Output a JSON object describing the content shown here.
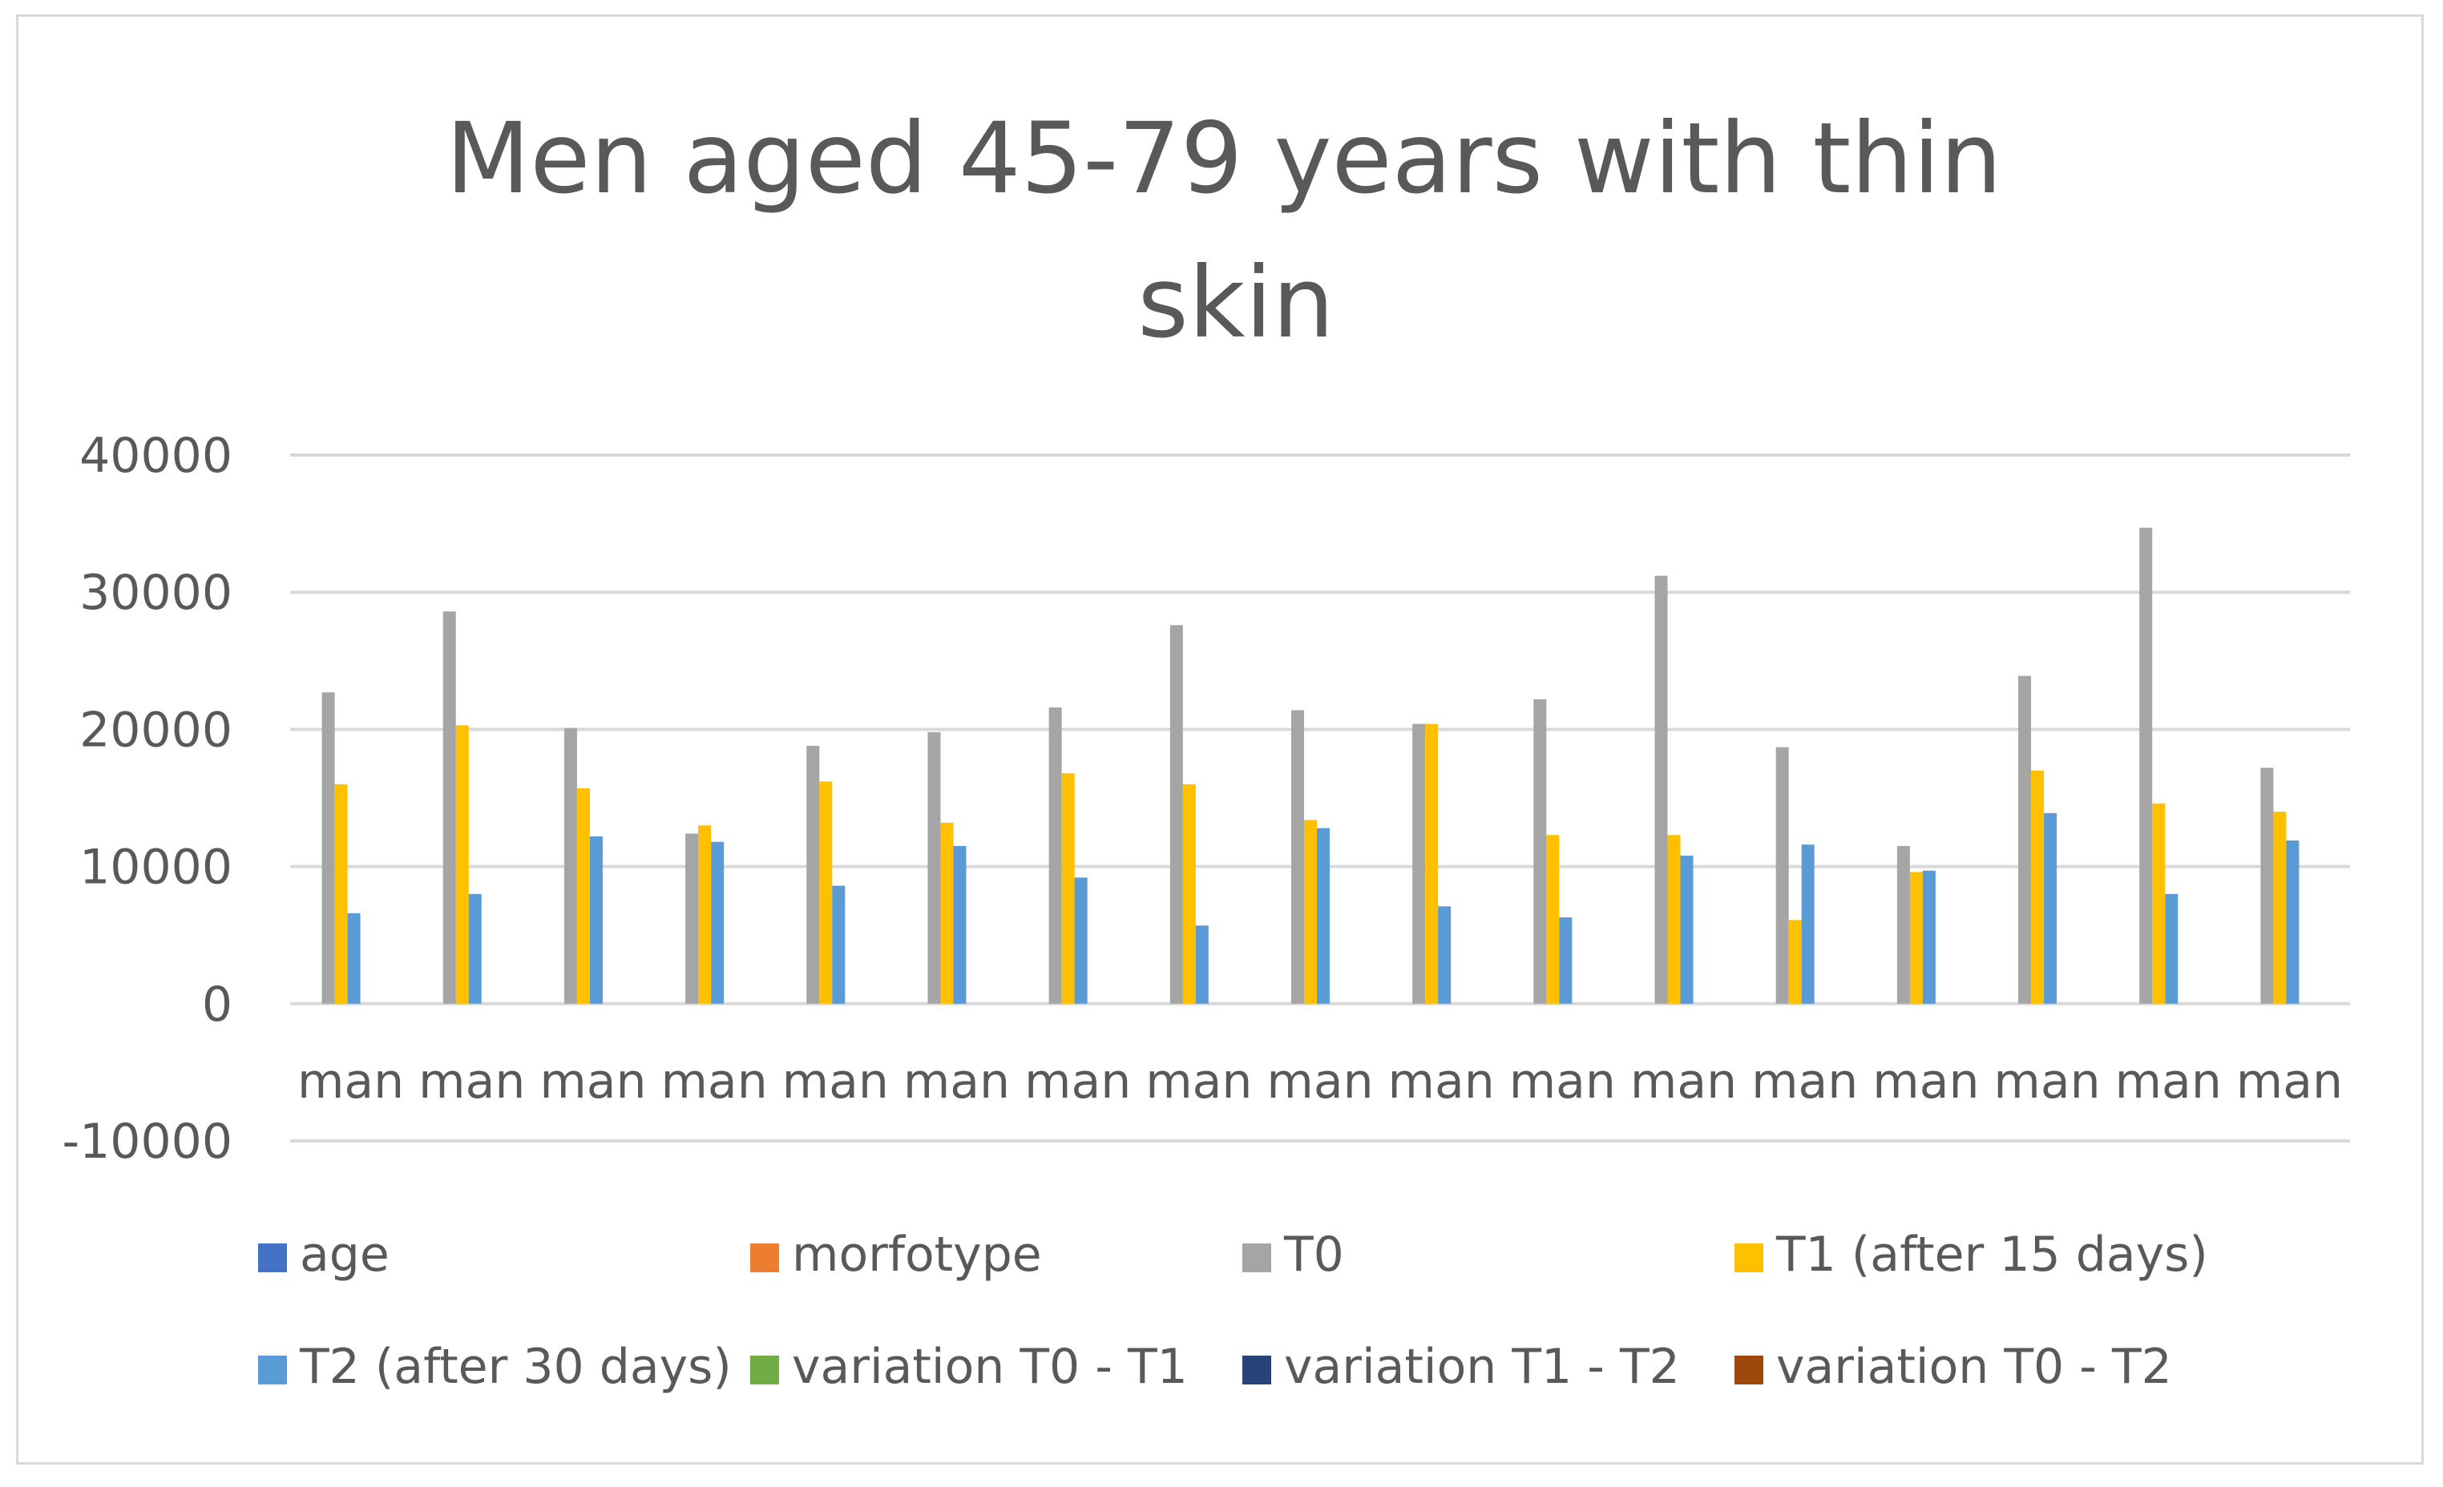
{
  "chart_data": {
    "type": "bar",
    "title": "Men aged 45-79 years with thin skin",
    "title_lines": [
      "Men aged 45-79 years with thin",
      "skin"
    ],
    "xlabel": "",
    "ylabel": "",
    "ylim": [
      -10000,
      40000
    ],
    "yticks": [
      40000,
      30000,
      20000,
      10000,
      0,
      -10000
    ],
    "ytick_labels": [
      "40000",
      "30000",
      "20000",
      "10000",
      "0",
      "-10000"
    ],
    "grid": true,
    "legend_position": "bottom",
    "categories": [
      "man",
      "man",
      "man",
      "man",
      "man",
      "man",
      "man",
      "man",
      "man",
      "man",
      "man",
      "man",
      "man",
      "man",
      "man",
      "man",
      "man"
    ],
    "series": [
      {
        "name": "age",
        "color": "#4472c4",
        "values": [
          0,
          0,
          0,
          0,
          0,
          0,
          0,
          0,
          0,
          0,
          0,
          0,
          0,
          0,
          0,
          0,
          0
        ]
      },
      {
        "name": "morfotype",
        "color": "#ed7d31",
        "values": [
          0,
          0,
          0,
          0,
          0,
          0,
          0,
          0,
          0,
          0,
          0,
          0,
          0,
          0,
          0,
          0,
          0
        ]
      },
      {
        "name": "T0",
        "color": "#a5a5a5",
        "values": [
          22700,
          28600,
          20100,
          12400,
          18800,
          19800,
          21600,
          27600,
          21400,
          20400,
          22200,
          31200,
          18700,
          11500,
          23900,
          34700,
          17200
        ]
      },
      {
        "name": "T1 (after 15 days)",
        "color": "#ffc000",
        "values": [
          16000,
          20300,
          15700,
          13000,
          16200,
          13200,
          16800,
          16000,
          13400,
          20400,
          12300,
          12300,
          6100,
          9600,
          17000,
          14600,
          14000
        ]
      },
      {
        "name": "T2 (after 30 days)",
        "color": "#5b9bd5",
        "values": [
          6600,
          8000,
          12200,
          11800,
          8600,
          11500,
          9200,
          5700,
          12800,
          7100,
          6300,
          10800,
          11600,
          9700,
          13900,
          8000,
          11900
        ]
      },
      {
        "name": "variation T0 - T1",
        "color": "#70ad47",
        "values": [
          0,
          0,
          0,
          0,
          0,
          0,
          0,
          0,
          0,
          0,
          0,
          0,
          0,
          0,
          0,
          0,
          0
        ]
      },
      {
        "name": "variation T1 - T2",
        "color": "#264478",
        "values": [
          0,
          0,
          0,
          0,
          0,
          0,
          0,
          0,
          0,
          0,
          0,
          0,
          0,
          0,
          0,
          0,
          0
        ]
      },
      {
        "name": "variation T0 - T2",
        "color": "#9e480e",
        "values": [
          0,
          0,
          0,
          0,
          0,
          0,
          0,
          0,
          0,
          0,
          0,
          0,
          0,
          0,
          0,
          0,
          0
        ]
      }
    ]
  }
}
